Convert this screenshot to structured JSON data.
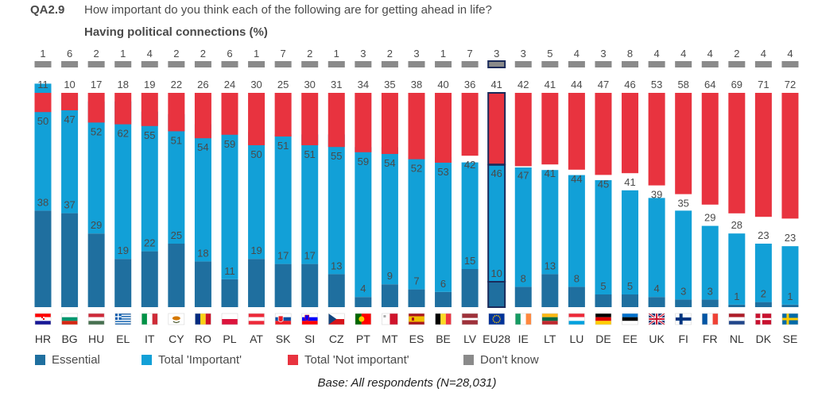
{
  "question": {
    "code": "QA2.9",
    "text": "How important do you think each of the following are for getting ahead in life?"
  },
  "chart_data": {
    "type": "bar",
    "title": "Having political connections (%)",
    "categories": [
      "HR",
      "BG",
      "HU",
      "EL",
      "IT",
      "CY",
      "RO",
      "PL",
      "AT",
      "SK",
      "SI",
      "CZ",
      "PT",
      "MT",
      "ES",
      "BE",
      "LV",
      "EU28",
      "IE",
      "LT",
      "LU",
      "DE",
      "EE",
      "UK",
      "FI",
      "FR",
      "NL",
      "DK",
      "SE"
    ],
    "highlight_category": "EU28",
    "series": [
      {
        "name": "Essential",
        "color": "#1f6f9f",
        "values": [
          38,
          37,
          29,
          19,
          22,
          25,
          18,
          11,
          19,
          17,
          17,
          13,
          4,
          9,
          7,
          6,
          15,
          10,
          8,
          13,
          8,
          5,
          5,
          4,
          3,
          3,
          1,
          2,
          1
        ]
      },
      {
        "name": "Total 'Important'",
        "color": "#12a0d7",
        "values": [
          50,
          47,
          52,
          62,
          55,
          51,
          54,
          59,
          50,
          51,
          51,
          55,
          59,
          54,
          52,
          53,
          42,
          46,
          47,
          41,
          44,
          45,
          41,
          39,
          35,
          29,
          28,
          23,
          23
        ]
      },
      {
        "name": "Total 'Not important'",
        "color": "#e8333f",
        "values": [
          11,
          10,
          17,
          18,
          19,
          22,
          26,
          24,
          30,
          25,
          30,
          31,
          34,
          35,
          38,
          40,
          36,
          41,
          42,
          41,
          44,
          47,
          46,
          53,
          58,
          64,
          69,
          71,
          72
        ]
      },
      {
        "name": "Don't know",
        "color": "#8a8a8a",
        "values": [
          1,
          6,
          2,
          1,
          4,
          2,
          2,
          6,
          1,
          7,
          2,
          1,
          3,
          2,
          3,
          1,
          7,
          3,
          3,
          5,
          4,
          3,
          8,
          4,
          4,
          4,
          2,
          4,
          4
        ]
      }
    ],
    "flag_icons": [
      "flag-hr-icon",
      "flag-bg-icon",
      "flag-hu-icon",
      "flag-el-icon",
      "flag-it-icon",
      "flag-cy-icon",
      "flag-ro-icon",
      "flag-pl-icon",
      "flag-at-icon",
      "flag-sk-icon",
      "flag-si-icon",
      "flag-cz-icon",
      "flag-pt-icon",
      "flag-mt-icon",
      "flag-es-icon",
      "flag-be-icon",
      "flag-lv-icon",
      "flag-eu28-icon",
      "flag-ie-icon",
      "flag-lt-icon",
      "flag-lu-icon",
      "flag-de-icon",
      "flag-ee-icon",
      "flag-uk-icon",
      "flag-fi-icon",
      "flag-fr-icon",
      "flag-nl-icon",
      "flag-dk-icon",
      "flag-se-icon"
    ],
    "legend_position": "bottom",
    "grid": false
  },
  "footer": {
    "base": "Base: All respondents (N=28,031)"
  }
}
